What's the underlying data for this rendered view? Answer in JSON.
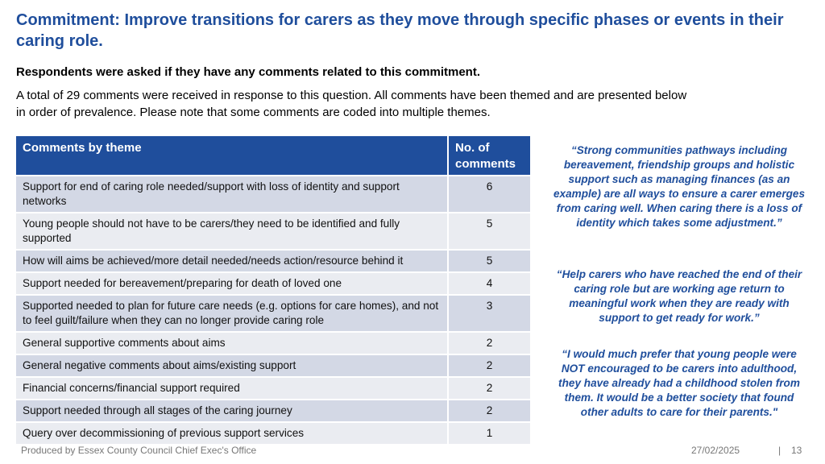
{
  "title": "Commitment: Improve transitions for carers as they move through specific phases or events in their caring role.",
  "subheading": "Respondents were asked if they have any comments related to this commitment.",
  "intro": "A total of 29 comments were received in response to this question. All comments have been themed and are presented below in order of prevalence. Please note that some comments are coded into multiple themes.",
  "table": {
    "headers": {
      "theme": "Comments by theme",
      "count": "No. of comments"
    },
    "rows": [
      {
        "theme": "Support for end of caring role needed/support with loss of identity and support networks",
        "count": "6"
      },
      {
        "theme": "Young people should not have to be carers/they need to be identified and fully supported",
        "count": "5"
      },
      {
        "theme": "How will aims be achieved/more detail needed/needs action/resource behind it",
        "count": "5"
      },
      {
        "theme": "Support needed for bereavement/preparing for death of loved one",
        "count": "4"
      },
      {
        "theme": "Supported needed to plan for future care needs (e.g. options for care homes), and not to feel guilt/failure when they can no longer provide caring role",
        "count": "3"
      },
      {
        "theme": "General supportive comments about aims",
        "count": "2"
      },
      {
        "theme": "General negative comments about aims/existing support",
        "count": "2"
      },
      {
        "theme": "Financial concerns/financial support required",
        "count": "2"
      },
      {
        "theme": "Support needed through all stages of the caring journey",
        "count": "2"
      },
      {
        "theme": "Query over decommissioning of previous support services",
        "count": "1"
      }
    ]
  },
  "quotes": [
    "“Strong communities pathways including bereavement, friendship groups and holistic support such as managing finances (as an example) are all ways to ensure a carer emerges from caring well. When caring there is a loss of identity which takes some adjustment.”",
    "“Help carers who have reached the end of their caring role but are working age return to meaningful work when they are ready with support to get ready for work.”",
    "“I would much prefer that young people were NOT encouraged to be carers into adulthood, they have already had a childhood stolen from them. It would be a better society that found other adults to care for their parents.\""
  ],
  "footer": {
    "producer": "Produced by Essex County Council Chief Exec's Office",
    "date": "27/02/2025",
    "separator": "|",
    "page": "13"
  },
  "colors": {
    "brand_blue": "#1f4e9c",
    "row_dark": "#d3d8e5",
    "row_light": "#eaecf1"
  }
}
